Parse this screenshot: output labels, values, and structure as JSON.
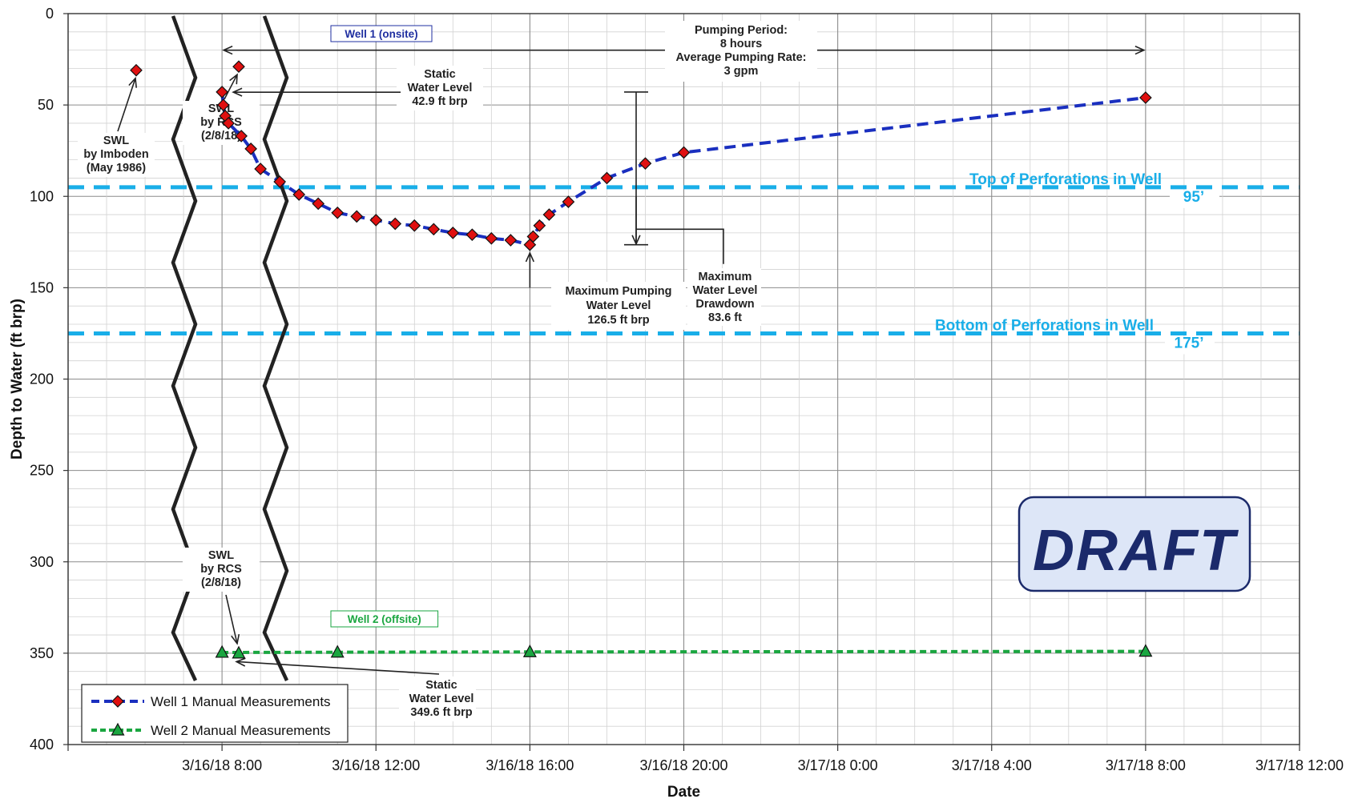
{
  "chart_data": {
    "type": "line",
    "xlabel": "Date",
    "ylabel": "Depth to Water (ft brp)",
    "ylim": [
      0,
      400
    ],
    "y_inverted": true,
    "y_ticks": [
      "0",
      "50",
      "100",
      "150",
      "200",
      "250",
      "300",
      "350",
      "400"
    ],
    "x_tick_labels": [
      "3/16/18 8:00",
      "3/16/18 12:00",
      "3/16/18 16:00",
      "3/16/18 20:00",
      "3/17/18 0:00",
      "3/17/18 4:00",
      "3/17/18 8:00",
      "3/17/18 12:00"
    ],
    "x_range_hours": [
      "3/16/18 4:00",
      "3/17/18 12:00"
    ],
    "grid": true,
    "legend_position": "bottom-left",
    "series": [
      {
        "name": "Well 1 Manual Measurements",
        "color": "#1a2fbf",
        "marker_color": "#e01010",
        "marker": "diamond",
        "points": [
          {
            "t": "3/16/18 8:00",
            "y": 42.9
          },
          {
            "t": "3/16/18 8:02",
            "y": 50
          },
          {
            "t": "3/16/18 8:05",
            "y": 56
          },
          {
            "t": "3/16/18 8:10",
            "y": 60
          },
          {
            "t": "3/16/18 8:30",
            "y": 67
          },
          {
            "t": "3/16/18 8:45",
            "y": 74
          },
          {
            "t": "3/16/18 9:00",
            "y": 85
          },
          {
            "t": "3/16/18 9:30",
            "y": 92
          },
          {
            "t": "3/16/18 10:00",
            "y": 99
          },
          {
            "t": "3/16/18 10:30",
            "y": 104
          },
          {
            "t": "3/16/18 11:00",
            "y": 109
          },
          {
            "t": "3/16/18 11:30",
            "y": 111
          },
          {
            "t": "3/16/18 12:00",
            "y": 113
          },
          {
            "t": "3/16/18 12:30",
            "y": 115
          },
          {
            "t": "3/16/18 13:00",
            "y": 116
          },
          {
            "t": "3/16/18 13:30",
            "y": 118
          },
          {
            "t": "3/16/18 14:00",
            "y": 120
          },
          {
            "t": "3/16/18 14:30",
            "y": 121
          },
          {
            "t": "3/16/18 15:00",
            "y": 123
          },
          {
            "t": "3/16/18 15:30",
            "y": 124
          },
          {
            "t": "3/16/18 16:00",
            "y": 126.5
          },
          {
            "t": "3/16/18 16:05",
            "y": 122
          },
          {
            "t": "3/16/18 16:15",
            "y": 116
          },
          {
            "t": "3/16/18 16:30",
            "y": 110
          },
          {
            "t": "3/16/18 17:00",
            "y": 103
          },
          {
            "t": "3/16/18 18:00",
            "y": 90
          },
          {
            "t": "3/16/18 19:00",
            "y": 82
          },
          {
            "t": "3/16/18 20:00",
            "y": 76
          },
          {
            "t": "3/17/18 8:00",
            "y": 46
          }
        ]
      },
      {
        "name": "Well 2 Manual Measurements",
        "color": "#1aa640",
        "marker_color": "#1aa640",
        "marker": "triangle",
        "points": [
          {
            "t": "3/16/18 8:00",
            "y": 349.6
          },
          {
            "t": "3/16/18 11:00",
            "y": 349.5
          },
          {
            "t": "3/16/18 16:00",
            "y": 349.3
          },
          {
            "t": "3/17/18 8:00",
            "y": 349
          }
        ]
      }
    ],
    "pre_test_points": [
      {
        "label": "SWL\nby Imboden\n(May 1986)",
        "depth": 31,
        "series": "Well 1"
      },
      {
        "label": "SWL\nby RCS\n(2/8/18)",
        "depth": 29,
        "series": "Well 1"
      },
      {
        "label": "SWL\nby RCS\n(2/8/18)",
        "depth": 350,
        "series": "Well 2"
      }
    ],
    "reference_lines": [
      {
        "label": "Top of Perforations in Well",
        "value_label": "95’",
        "depth": 95,
        "color": "#19aee8"
      },
      {
        "label": "Bottom of Perforations in Well",
        "value_label": "175’",
        "depth": 175,
        "color": "#19aee8"
      }
    ],
    "annotations": {
      "well1_tag": "Well 1 (onsite)",
      "well2_tag": "Well 2 (offsite)",
      "pumping": [
        "Pumping Period:",
        "8 hours",
        "Average Pumping Rate:",
        "3 gpm"
      ],
      "static_well1": [
        "Static",
        "Water Level",
        "42.9 ft brp"
      ],
      "max_pumping": [
        "Maximum Pumping",
        "Water Level",
        "126.5 ft brp"
      ],
      "drawdown": [
        "Maximum",
        "Water Level",
        "Drawdown",
        "83.6 ft"
      ],
      "static_well2": [
        "Static",
        "Water Level",
        "349.6 ft brp"
      ]
    },
    "watermark": "DRAFT"
  }
}
